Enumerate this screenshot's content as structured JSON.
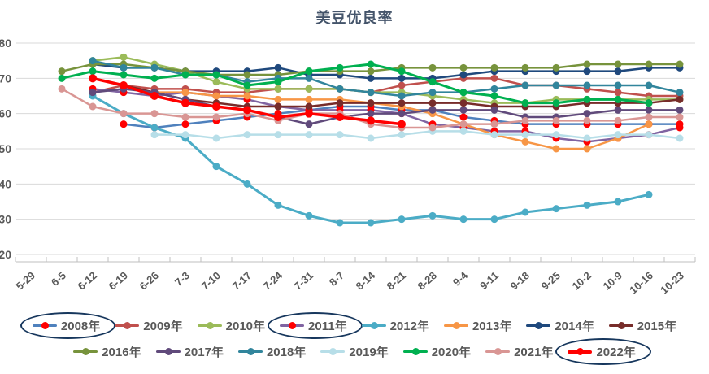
{
  "title": "美豆优良率",
  "colors": {
    "title_text": "#44546A",
    "axis_text": "#595959",
    "gridline": "#D9D9D9",
    "annotation_ellipse": "#17375D",
    "background": "#FFFFFF"
  },
  "chart_data": {
    "type": "line",
    "title": "美豆优良率",
    "xlabel": "",
    "ylabel": "",
    "ylim": [
      20,
      80
    ],
    "y_ticks": [
      80,
      70,
      60,
      50,
      40,
      30,
      20
    ],
    "grid": "horizontal",
    "legend_position": "bottom",
    "legend_rows": [
      8,
      7
    ],
    "categories": [
      "5-29",
      "6-5",
      "6-12",
      "6-19",
      "6-26",
      "7-3",
      "7-10",
      "7-17",
      "7-24",
      "7-31",
      "8-7",
      "8-14",
      "8-21",
      "8-28",
      "9-4",
      "9-11",
      "9-18",
      "9-25",
      "10-2",
      "10-9",
      "10-16",
      "10-23"
    ],
    "series": [
      {
        "name": "2008年",
        "color": "#4F81BD",
        "marker_color": "#FF0000",
        "circled": true,
        "width": 2.5,
        "values": [
          null,
          null,
          null,
          57,
          56,
          57,
          58,
          59,
          60,
          61,
          62,
          62,
          61,
          61,
          59,
          58,
          57,
          57,
          57,
          57,
          57,
          57
        ]
      },
      {
        "name": "2009年",
        "color": "#C0504D",
        "marker_color": "#C0504D",
        "circled": false,
        "width": 2.5,
        "values": [
          null,
          null,
          66,
          68,
          67,
          67,
          66,
          66,
          67,
          67,
          67,
          66,
          68,
          69,
          70,
          70,
          68,
          68,
          67,
          66,
          65,
          65
        ]
      },
      {
        "name": "2010年",
        "color": "#9BBB59",
        "marker_color": "#9BBB59",
        "circled": false,
        "width": 2.5,
        "values": [
          null,
          null,
          75,
          76,
          74,
          72,
          69,
          67,
          67,
          67,
          67,
          66,
          66,
          65,
          64,
          63,
          63,
          64,
          64,
          64,
          64,
          64
        ]
      },
      {
        "name": "2011年",
        "color": "#8064A2",
        "marker_color": "#FF0000",
        "circled": true,
        "width": 2.5,
        "values": [
          null,
          null,
          67,
          66,
          65,
          66,
          65,
          64,
          62,
          61,
          61,
          61,
          60,
          57,
          56,
          55,
          55,
          53,
          52,
          53,
          54,
          56
        ]
      },
      {
        "name": "2012年",
        "color": "#4BACC6",
        "marker_color": "#4BACC6",
        "circled": false,
        "width": 3,
        "values": [
          null,
          null,
          65,
          60,
          56,
          53,
          45,
          40,
          34,
          31,
          29,
          29,
          30,
          31,
          30,
          30,
          32,
          33,
          34,
          35,
          37,
          null
        ]
      },
      {
        "name": "2013年",
        "color": "#F79646",
        "marker_color": "#F79646",
        "circled": false,
        "width": 2.5,
        "values": [
          null,
          null,
          null,
          null,
          66,
          66,
          65,
          65,
          64,
          64,
          64,
          63,
          62,
          60,
          57,
          54,
          52,
          50,
          50,
          53,
          57,
          null
        ]
      },
      {
        "name": "2014年",
        "color": "#1F497D",
        "marker_color": "#1F497D",
        "circled": false,
        "width": 2.5,
        "values": [
          null,
          null,
          74,
          73,
          73,
          72,
          72,
          72,
          73,
          71,
          71,
          70,
          70,
          70,
          71,
          72,
          72,
          72,
          72,
          72,
          73,
          73
        ]
      },
      {
        "name": "2015年",
        "color": "#772C2A",
        "marker_color": "#772C2A",
        "circled": false,
        "width": 2.5,
        "values": [
          null,
          null,
          null,
          68,
          66,
          64,
          63,
          62,
          62,
          62,
          63,
          63,
          63,
          63,
          63,
          62,
          62,
          62,
          63,
          63,
          63,
          64
        ]
      },
      {
        "name": "2016年",
        "color": "#77933C",
        "marker_color": "#77933C",
        "circled": false,
        "width": 2.5,
        "values": [
          null,
          72,
          74,
          74,
          73,
          72,
          71,
          71,
          71,
          72,
          72,
          72,
          73,
          73,
          73,
          73,
          73,
          73,
          74,
          74,
          74,
          74
        ]
      },
      {
        "name": "2017年",
        "color": "#604A7B",
        "marker_color": "#604A7B",
        "circled": false,
        "width": 2.5,
        "values": [
          null,
          null,
          66,
          67,
          66,
          64,
          62,
          61,
          59,
          57,
          59,
          60,
          60,
          61,
          61,
          61,
          59,
          59,
          60,
          61,
          61,
          61
        ]
      },
      {
        "name": "2018年",
        "color": "#31859C",
        "marker_color": "#31859C",
        "circled": false,
        "width": 2.5,
        "values": [
          null,
          null,
          75,
          73,
          73,
          71,
          71,
          69,
          70,
          70,
          67,
          66,
          65,
          66,
          66,
          67,
          68,
          68,
          68,
          68,
          68,
          66
        ]
      },
      {
        "name": "2019年",
        "color": "#B7DEE8",
        "marker_color": "#B7DEE8",
        "circled": false,
        "width": 2.5,
        "values": [
          null,
          null,
          null,
          null,
          54,
          54,
          53,
          54,
          54,
          54,
          54,
          53,
          54,
          55,
          55,
          54,
          54,
          54,
          53,
          54,
          54,
          53
        ]
      },
      {
        "name": "2020年",
        "color": "#00B050",
        "marker_color": "#00B050",
        "circled": false,
        "width": 3,
        "values": [
          null,
          70,
          72,
          71,
          70,
          71,
          71,
          68,
          69,
          72,
          73,
          74,
          72,
          69,
          66,
          65,
          63,
          63,
          64,
          64,
          63,
          null
        ]
      },
      {
        "name": "2021年",
        "color": "#D99694",
        "marker_color": "#D99694",
        "circled": false,
        "width": 2.5,
        "values": [
          null,
          67,
          62,
          60,
          60,
          59,
          59,
          60,
          58,
          60,
          60,
          57,
          56,
          56,
          57,
          57,
          58,
          58,
          58,
          58,
          59,
          59
        ]
      },
      {
        "name": "2022年",
        "color": "#FF0000",
        "marker_color": "#FF0000",
        "circled": true,
        "width": 3.5,
        "values": [
          null,
          null,
          70,
          68,
          65,
          63,
          62,
          61,
          59,
          60,
          59,
          58,
          57,
          null,
          null,
          null,
          null,
          null,
          null,
          null,
          null,
          null
        ]
      }
    ]
  }
}
